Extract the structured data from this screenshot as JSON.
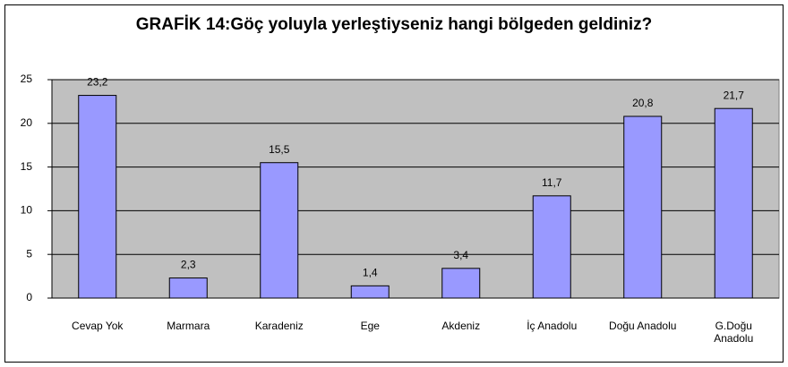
{
  "chart_data": {
    "type": "bar",
    "title": "GRAFİK 14:Göç yoluyla yerleştiyseniz hangi bölgeden geldiniz?",
    "categories": [
      "Cevap Yok",
      "Marmara",
      "Karadeniz",
      "Ege",
      "Akdeniz",
      "İç Anadolu",
      "Doğu Anadolu",
      "G.Doğu Anadolu"
    ],
    "values": [
      23.2,
      2.3,
      15.5,
      1.4,
      3.4,
      11.7,
      20.8,
      21.7
    ],
    "value_labels": [
      "23,2",
      "2,3",
      "15,5",
      "1,4",
      "3,4",
      "11,7",
      "20,8",
      "21,7"
    ],
    "color": "#9999ff",
    "ylim": [
      0,
      25
    ],
    "yticks": [
      0,
      5,
      10,
      15,
      20,
      25
    ],
    "grid": true
  }
}
